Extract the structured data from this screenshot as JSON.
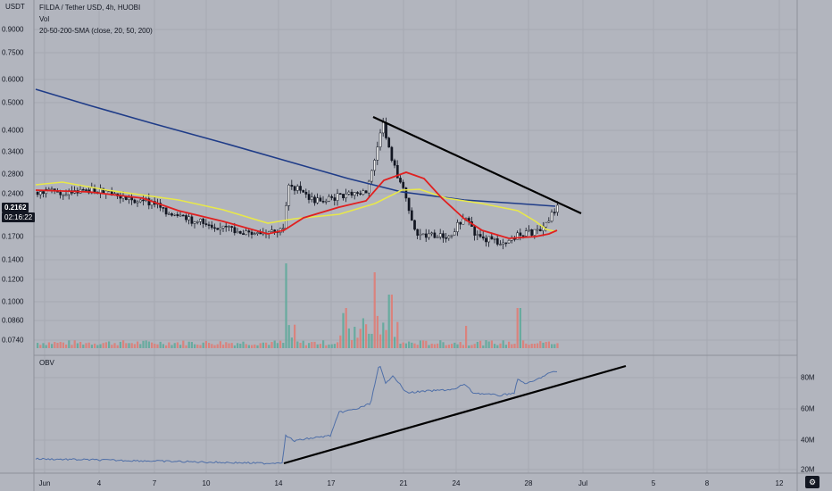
{
  "header": {
    "symbol_line": "FILDA / Tether USD, 4h, HUOBI",
    "vol_label": "Vol",
    "ma_label": "20-50-200-SMA (close, 20, 50, 200)",
    "currency_label": "USDT"
  },
  "price_axis": {
    "ticks": [
      "0.9000",
      "0.7500",
      "0.6000",
      "0.5000",
      "0.4000",
      "0.3400",
      "0.2800",
      "0.2400",
      "0.1700",
      "0.1400",
      "0.1200",
      "0.1000",
      "0.0860",
      "0.0740"
    ],
    "last_price": "0.2162",
    "countdown": "02:16:22"
  },
  "obv_panel": {
    "title": "OBV",
    "ticks": [
      "80M",
      "60M",
      "40M",
      "20M"
    ]
  },
  "time_axis": {
    "ticks": [
      "Jun",
      "4",
      "7",
      "10",
      "14",
      "17",
      "21",
      "24",
      "28",
      "Jul",
      "5",
      "8",
      "12"
    ]
  },
  "colors": {
    "background": "#b2b5be",
    "sma20": "#e02020",
    "sma50": "#e8e84a",
    "sma200": "#1f3c88",
    "up_candle": "#f0f0f0",
    "down_candle": "#131722",
    "vol_up": "#5aa99a",
    "vol_down": "#e07a72",
    "obv_line": "#4f6fa8",
    "trendline": "#000000"
  },
  "settings_button": {
    "icon": "gear-icon"
  }
}
